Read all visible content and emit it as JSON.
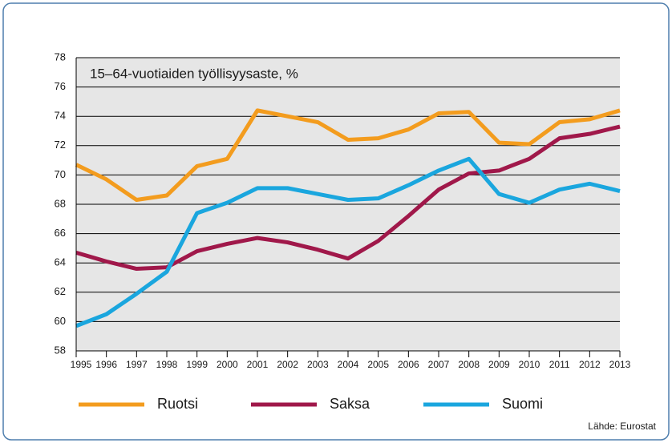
{
  "chart_data": {
    "type": "line",
    "title": "15–64-vuotiaiden työllisyysaste, %",
    "source": "Lähde: Eurostat",
    "x": [
      1995,
      1996,
      1997,
      1998,
      1999,
      2000,
      2001,
      2002,
      2003,
      2004,
      2005,
      2006,
      2007,
      2008,
      2009,
      2010,
      2011,
      2012,
      2013
    ],
    "xlim": [
      1995,
      2013
    ],
    "xticks": [
      1995,
      1996,
      1997,
      1998,
      1999,
      2000,
      2001,
      2002,
      2003,
      2004,
      2005,
      2006,
      2007,
      2008,
      2009,
      2010,
      2011,
      2012,
      2013
    ],
    "ylim": [
      58,
      78
    ],
    "yticks": [
      58,
      60,
      62,
      64,
      66,
      68,
      70,
      72,
      74,
      76,
      78
    ],
    "grid": true,
    "legend": "bottom",
    "series": [
      {
        "name": "Ruotsi",
        "color": "#f39c1e",
        "values": [
          70.7,
          69.7,
          68.3,
          68.6,
          70.6,
          71.1,
          74.4,
          74.0,
          73.6,
          72.4,
          72.5,
          73.1,
          74.2,
          74.3,
          72.2,
          72.1,
          73.6,
          73.8,
          74.4
        ]
      },
      {
        "name": "Saksa",
        "color": "#a0184a",
        "values": [
          64.7,
          64.1,
          63.6,
          63.7,
          64.8,
          65.3,
          65.7,
          65.4,
          64.9,
          64.3,
          65.5,
          67.2,
          69.0,
          70.1,
          70.3,
          71.1,
          72.5,
          72.8,
          73.3
        ]
      },
      {
        "name": "Suomi",
        "color": "#1aa6de",
        "values": [
          59.7,
          60.5,
          61.9,
          63.4,
          67.4,
          68.1,
          69.1,
          69.1,
          68.7,
          68.3,
          68.4,
          69.3,
          70.3,
          71.1,
          68.7,
          68.1,
          69.0,
          69.4,
          68.9
        ]
      }
    ]
  }
}
